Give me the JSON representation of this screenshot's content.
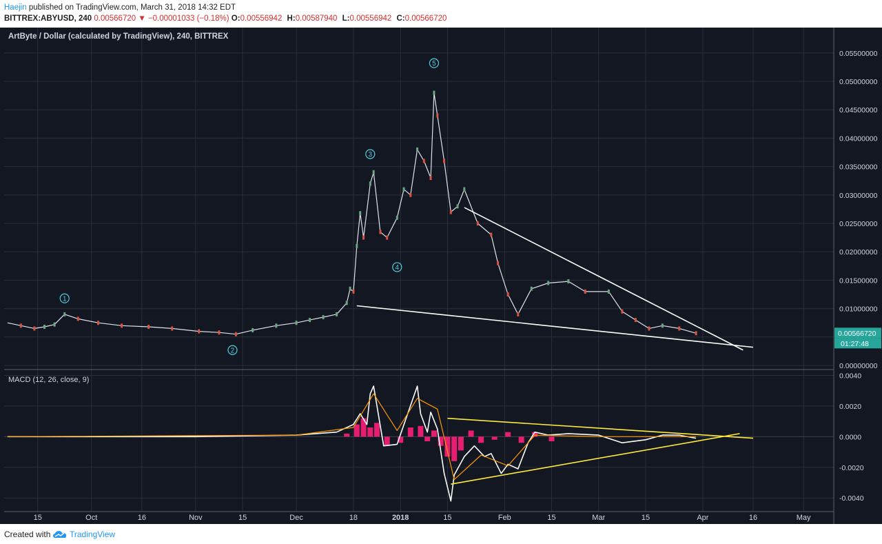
{
  "header": {
    "author": "Haejin",
    "published_text": "published on TradingView.com, March 31, 2018 14:32 EDT",
    "symbol_line": "BITTREX:ABYUSD, 240",
    "last": "0.00566720",
    "change": "−0.00001033 (−0.18%)",
    "ohlc": [
      {
        "label": "O:",
        "value": "0.00556942"
      },
      {
        "label": "H:",
        "value": "0.00587940"
      },
      {
        "label": "L:",
        "value": "0.00556942"
      },
      {
        "label": "C:",
        "value": "0.00566720"
      }
    ]
  },
  "footer": {
    "created_with": "Created with",
    "brand": "TradingView"
  },
  "colors": {
    "background": "#131722",
    "grid": "#2a2e39",
    "up": "#6ba583",
    "down": "#d75442",
    "price_line": "#e0e3eb",
    "trendline_price": "#ffffff",
    "trendline_macd": "#ffeb3b",
    "macd_line": "#ffffff",
    "signal_line": "#ff9800",
    "histogram": "#ff1e7a",
    "wave_label": "#4dd0e1",
    "last_price_bg": "#26a69a"
  },
  "chart_data": [
    {
      "type": "line",
      "title": "ArtByte / Dollar (calculated by TradingView), 240, BITTREX",
      "x_ticks": [
        "15",
        "Oct",
        "16",
        "Nov",
        "15",
        "Dec",
        "18",
        "2018",
        "15",
        "Feb",
        "15",
        "Mar",
        "15",
        "Apr",
        "16",
        "May"
      ],
      "x_tick_dates": [
        "2017-09-15",
        "2017-10-01",
        "2017-10-16",
        "2017-11-01",
        "2017-11-15",
        "2017-12-01",
        "2017-12-18",
        "2018-01-01",
        "2018-01-15",
        "2018-02-01",
        "2018-02-15",
        "2018-03-01",
        "2018-03-15",
        "2018-04-01",
        "2018-04-16",
        "2018-05-01"
      ],
      "y_ticks": [
        "0.05500000",
        "0.05000000",
        "0.04500000",
        "0.04000000",
        "0.03500000",
        "0.03000000",
        "0.02500000",
        "0.02000000",
        "0.01500000",
        "0.01000000",
        "0.00500000",
        "0.00000000"
      ],
      "ylim": [
        0,
        0.0568
      ],
      "last_price_label": "0.00566720",
      "countdown": "01:27:48",
      "series": [
        {
          "x": [
            "2017-09-06",
            "2017-09-10",
            "2017-09-14",
            "2017-09-17",
            "2017-09-20",
            "2017-09-23",
            "2017-09-27",
            "2017-10-03",
            "2017-10-10",
            "2017-10-18",
            "2017-10-25",
            "2017-11-02",
            "2017-11-08",
            "2017-11-13",
            "2017-11-18",
            "2017-11-25",
            "2017-12-01",
            "2017-12-05",
            "2017-12-09",
            "2017-12-13",
            "2017-12-16",
            "2017-12-17",
            "2017-12-18",
            "2017-12-19",
            "2017-12-20",
            "2017-12-21",
            "2017-12-23",
            "2017-12-24",
            "2017-12-26",
            "2017-12-28",
            "2017-12-31",
            "2018-01-02",
            "2018-01-04",
            "2018-01-06",
            "2018-01-08",
            "2018-01-10",
            "2018-01-11",
            "2018-01-12",
            "2018-01-14",
            "2018-01-16",
            "2018-01-18",
            "2018-01-20",
            "2018-01-24",
            "2018-01-28",
            "2018-01-30",
            "2018-02-02",
            "2018-02-05",
            "2018-02-09",
            "2018-02-14",
            "2018-02-20",
            "2018-02-25",
            "2018-03-04",
            "2018-03-08",
            "2018-03-12",
            "2018-03-16",
            "2018-03-20",
            "2018-03-25",
            "2018-03-30"
          ],
          "values": [
            0.0075,
            0.007,
            0.0065,
            0.0068,
            0.0072,
            0.009,
            0.0082,
            0.0075,
            0.007,
            0.0068,
            0.0065,
            0.006,
            0.0058,
            0.0055,
            0.0062,
            0.007,
            0.0075,
            0.008,
            0.0085,
            0.009,
            0.011,
            0.0135,
            0.013,
            0.021,
            0.0268,
            0.0225,
            0.032,
            0.034,
            0.0235,
            0.0225,
            0.026,
            0.031,
            0.03,
            0.038,
            0.036,
            0.033,
            0.048,
            0.044,
            0.036,
            0.027,
            0.028,
            0.031,
            0.025,
            0.023,
            0.018,
            0.0125,
            0.009,
            0.0135,
            0.0145,
            0.0148,
            0.013,
            0.013,
            0.0095,
            0.008,
            0.0065,
            0.007,
            0.0065,
            0.00567
          ]
        }
      ],
      "trendlines": [
        {
          "from": [
            "2017-12-19",
            0.0105
          ],
          "to": [
            "2018-04-16",
            0.0032
          ]
        },
        {
          "from": [
            "2018-01-20",
            0.0278
          ],
          "to": [
            "2018-04-13",
            0.0027
          ]
        }
      ],
      "wave_labels": [
        {
          "text": "1",
          "x": "2017-09-23",
          "y": 0.0118
        },
        {
          "text": "2",
          "x": "2017-11-12",
          "y": 0.0027
        },
        {
          "text": "3",
          "x": "2017-12-23",
          "y": 0.0372
        },
        {
          "text": "4",
          "x": "2017-12-31",
          "y": 0.0173
        },
        {
          "text": "5",
          "x": "2018-01-11",
          "y": 0.0532
        }
      ]
    },
    {
      "type": "line",
      "title": "MACD (12, 26, close, 9)",
      "y_ticks": [
        "0.0040",
        "0.0020",
        "0.0000",
        "-0.0020",
        "-0.0040"
      ],
      "ylim": [
        -0.0048,
        0.0042
      ],
      "series": [
        {
          "x": [
            "2017-09-06",
            "2017-10-01",
            "2017-11-01",
            "2017-12-01",
            "2017-12-13",
            "2017-12-18",
            "2017-12-20",
            "2017-12-22",
            "2017-12-23",
            "2017-12-24",
            "2017-12-27",
            "2017-12-31",
            "2018-01-03",
            "2018-01-06",
            "2018-01-07",
            "2018-01-09",
            "2018-01-10",
            "2018-01-12",
            "2018-01-14",
            "2018-01-16",
            "2018-01-17",
            "2018-01-20",
            "2018-01-23",
            "2018-01-26",
            "2018-01-28",
            "2018-01-31",
            "2018-02-02",
            "2018-02-05",
            "2018-02-08",
            "2018-02-10",
            "2018-02-14",
            "2018-02-20",
            "2018-03-01",
            "2018-03-08",
            "2018-03-15",
            "2018-03-20",
            "2018-03-25",
            "2018-03-30"
          ],
          "values": [
            0,
            0,
            0,
            0.0001,
            0.0003,
            0.0008,
            0.0015,
            0.0008,
            0.0028,
            0.0033,
            -0.0006,
            -0.0005,
            0.0014,
            0.0033,
            0.0015,
            0.0003,
            0.0016,
            0.0005,
            -0.0024,
            -0.0042,
            -0.0025,
            -0.0013,
            -0.0006,
            -0.0013,
            -0.0011,
            -0.0024,
            -0.0018,
            -0.0021,
            -0.0004,
            0.0003,
            0.0001,
            0.0002,
            0.0001,
            -0.0004,
            -0.0002,
            0.0001,
            0.0001,
            -0.0001
          ]
        },
        {
          "x": [
            "2017-09-06",
            "2017-12-01",
            "2017-12-18",
            "2017-12-24",
            "2017-12-31",
            "2018-01-06",
            "2018-01-12",
            "2018-01-17",
            "2018-01-25",
            "2018-02-02",
            "2018-02-10",
            "2018-03-01",
            "2018-03-30"
          ],
          "values": [
            0,
            0.0001,
            0.0006,
            0.0028,
            0.0004,
            0.0025,
            0.0018,
            -0.0028,
            -0.0012,
            -0.0019,
            0.0001,
            0,
            0
          ]
        }
      ],
      "histogram": {
        "x": [
          "2017-12-16",
          "2017-12-19",
          "2017-12-21",
          "2017-12-23",
          "2017-12-25",
          "2017-12-28",
          "2018-01-01",
          "2018-01-04",
          "2018-01-07",
          "2018-01-09",
          "2018-01-11",
          "2018-01-13",
          "2018-01-15",
          "2018-01-17",
          "2018-01-19",
          "2018-01-22",
          "2018-01-25",
          "2018-01-29",
          "2018-02-02",
          "2018-02-06",
          "2018-02-10",
          "2018-02-15"
        ],
        "values": [
          0.0002,
          0.0008,
          0.0012,
          0.0006,
          0.0009,
          -0.0006,
          -0.0004,
          0.0006,
          0.0007,
          -0.0003,
          0.0004,
          -0.0006,
          -0.0013,
          -0.0016,
          -0.0009,
          0.0004,
          -0.0004,
          -0.0002,
          0.0003,
          -0.0004,
          0.0003,
          -0.0003
        ]
      },
      "trendlines": [
        {
          "from": [
            "2018-01-15",
            0.0012
          ],
          "to": [
            "2018-04-16",
            -0.0001
          ]
        },
        {
          "from": [
            "2018-01-16",
            -0.0031
          ],
          "to": [
            "2018-04-12",
            0.0002
          ]
        }
      ]
    }
  ]
}
